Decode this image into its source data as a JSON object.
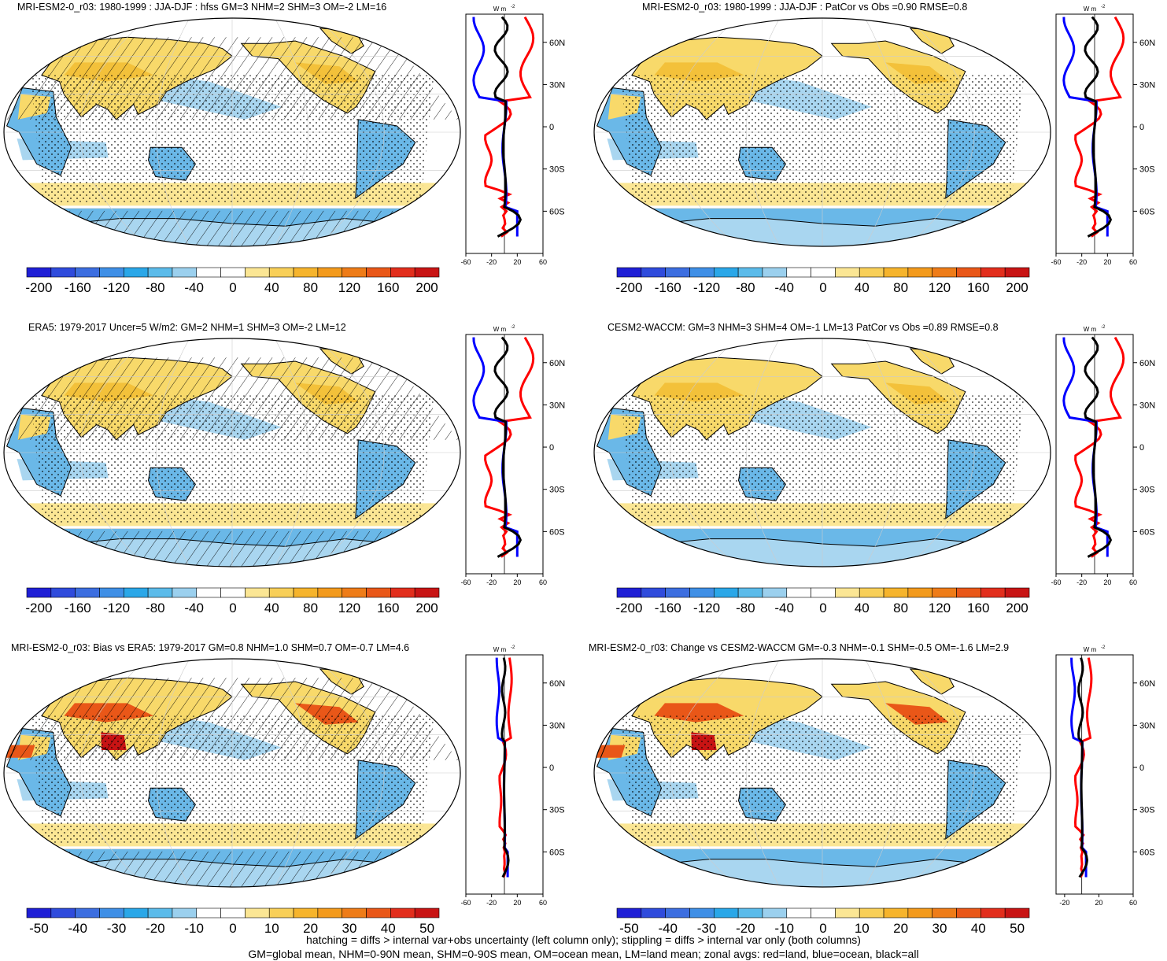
{
  "panels": [
    {
      "title": "MRI-ESM2-0_r03: 1980-1999 : JJA-DJF : hfss GM=3 NHM=2 SHM=3 OM=-2 LM=16",
      "hatching": true,
      "cbar_labels": [
        "-200",
        "-160",
        "-120",
        "-80",
        "-40",
        "0",
        "40",
        "80",
        "120",
        "160",
        "200"
      ],
      "x_ticks": [
        "-60",
        "-20",
        "20",
        "60"
      ],
      "x_range": [
        -60,
        60
      ]
    },
    {
      "title": "MRI-ESM2-0_r03: 1980-1999 : JJA-DJF : PatCor vs Obs =0.90 RMSE=0.8",
      "hatching": false,
      "cbar_labels": [
        "-200",
        "-160",
        "-120",
        "-80",
        "-40",
        "0",
        "40",
        "80",
        "120",
        "160",
        "200"
      ],
      "x_ticks": [
        "-60",
        "-20",
        "20",
        "60"
      ],
      "x_range": [
        -60,
        60
      ]
    },
    {
      "title": "ERA5: 1979-2017 Uncer=5 W/m2: GM=2 NHM=1 SHM=3 OM=-2 LM=12",
      "hatching": true,
      "cbar_labels": [
        "-200",
        "-160",
        "-120",
        "-80",
        "-40",
        "0",
        "40",
        "80",
        "120",
        "160",
        "200"
      ],
      "x_ticks": [
        "-60",
        "-20",
        "20",
        "60"
      ],
      "x_range": [
        -60,
        60
      ]
    },
    {
      "title": "CESM2-WACCM: GM=3 NHM=3 SHM=4 OM=-1 LM=13 PatCor vs Obs =0.89 RMSE=0.8",
      "hatching": false,
      "cbar_labels": [
        "-200",
        "-160",
        "-120",
        "-80",
        "-40",
        "0",
        "40",
        "80",
        "120",
        "160",
        "200"
      ],
      "x_ticks": [
        "-60",
        "-20",
        "20",
        "60"
      ],
      "x_range": [
        -60,
        60
      ]
    },
    {
      "title": "MRI-ESM2-0_r03: Bias vs ERA5: 1979-2017 GM=0.8 NHM=1.0 SHM=0.7 OM=-0.7 LM=4.6",
      "hatching": true,
      "cbar_labels": [
        "-50",
        "-40",
        "-30",
        "-20",
        "-10",
        "0",
        "10",
        "20",
        "30",
        "40",
        "50"
      ],
      "x_ticks": [
        "-60",
        "-20",
        "20",
        "60"
      ],
      "x_range": [
        -60,
        60
      ]
    },
    {
      "title": "MRI-ESM2-0_r03: Change vs CESM2-WACCM GM=-0.3 NHM=-0.1 SHM=-0.5 OM=-1.6 LM=2.9",
      "hatching": false,
      "cbar_labels": [
        "-50",
        "-40",
        "-30",
        "-20",
        "-10",
        "0",
        "10",
        "20",
        "30",
        "40",
        "50"
      ],
      "x_ticks": [
        "-20",
        "20",
        "60"
      ],
      "x_range": [
        -30,
        60
      ]
    }
  ],
  "lat_ticks": [
    "60N",
    "30N",
    "0",
    "30S",
    "60S"
  ],
  "zonal_unit": "W m",
  "zonal_unit_exp": "-2",
  "cbar_colors": [
    "#1f1fd6",
    "#2f4bdc",
    "#3c6ee0",
    "#3f8fe6",
    "#2aa7e8",
    "#5bbbea",
    "#9bd0ee",
    "#ffffff",
    "#ffffff",
    "#fbe694",
    "#f8cf58",
    "#f6b42c",
    "#f39a1c",
    "#ee7c18",
    "#e95718",
    "#e22e1c",
    "#c81414"
  ],
  "zonal_colors": {
    "land": "#ff0000",
    "ocean": "#0000ff",
    "all": "#000000"
  },
  "footer": {
    "line1": "hatching = diffs > internal var+obs uncertainty (left column only); stippling = diffs > internal var only (both columns)",
    "line2": "GM=global mean, NHM=0-90N mean, SHM=0-90S mean, OM=ocean mean, LM=land mean; zonal avgs: red=land, blue=ocean, black=all"
  }
}
